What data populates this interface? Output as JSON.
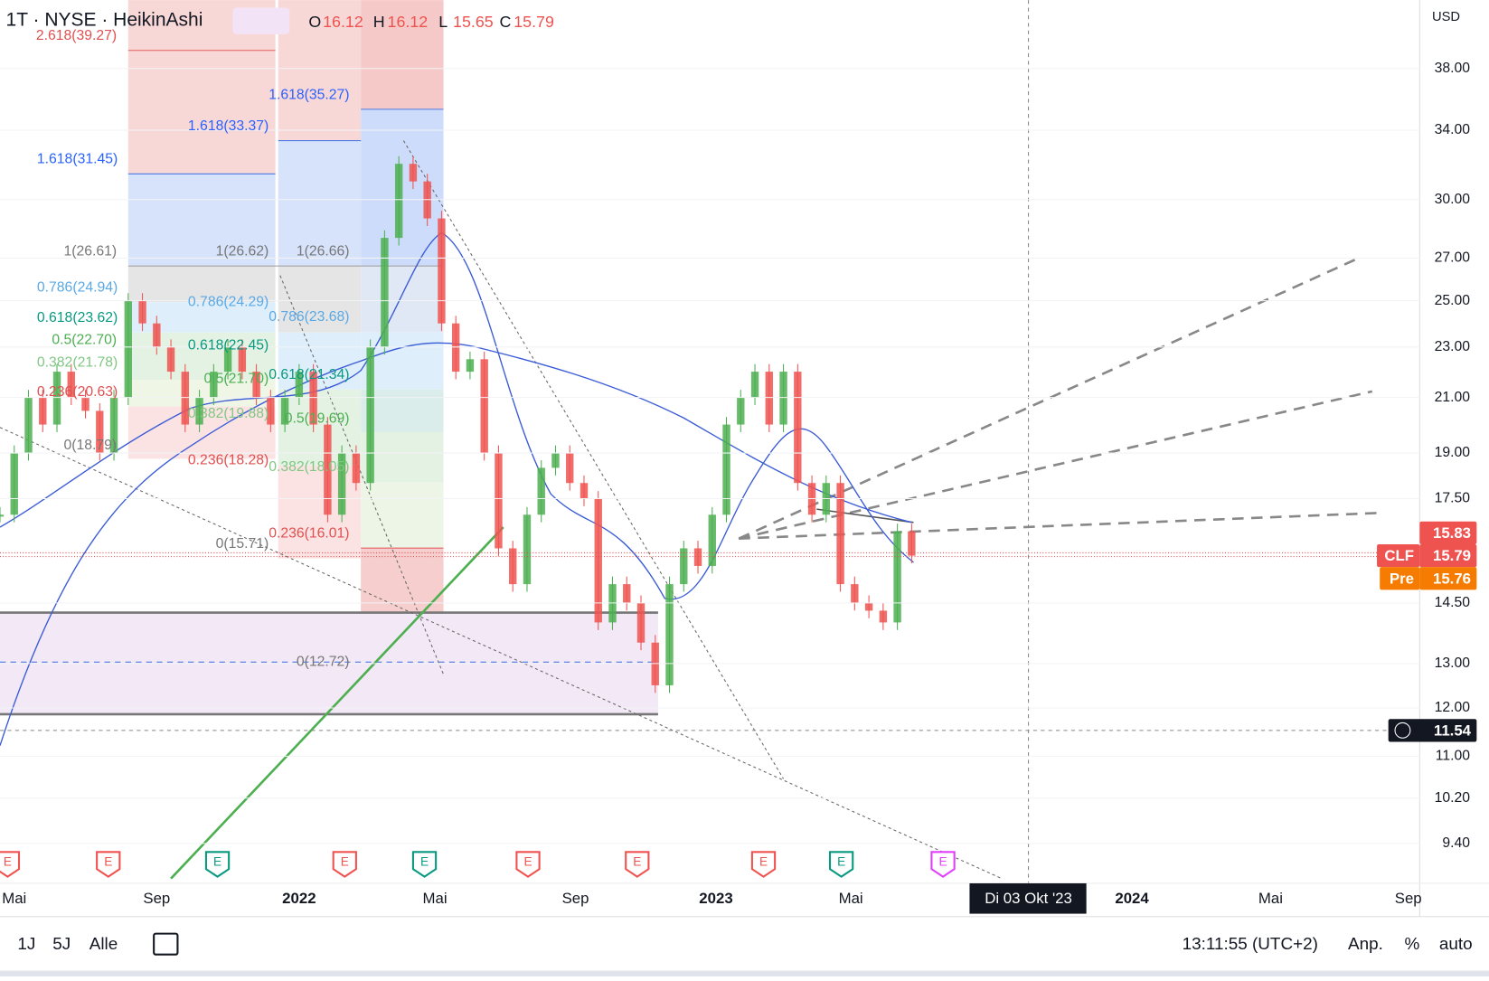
{
  "header": {
    "symbol": "· 1T · NYSE · HeikinAshi",
    "ohlc": [
      {
        "label": "O",
        "value": "16.12"
      },
      {
        "label": "H",
        "value": "16.12"
      },
      {
        "label": "L",
        "value": "15.65"
      },
      {
        "label": "C",
        "value": "15.79"
      }
    ],
    "currency": "USD"
  },
  "price_axis": {
    "ticks": [
      38.0,
      34.0,
      30.0,
      27.0,
      25.0,
      23.0,
      21.0,
      19.0,
      17.5,
      14.5,
      13.0,
      12.0,
      11.0,
      10.2,
      9.4
    ],
    "tick_labels": [
      "38.00",
      "34.00",
      "30.00",
      "27.00",
      "25.00",
      "23.00",
      "21.00",
      "19.00",
      "17.50",
      "14.50",
      "13.00",
      "12.00",
      "11.00",
      "10.20",
      "9.40"
    ]
  },
  "price_tags": {
    "high": "15.83",
    "symbol": "CLF",
    "last": "15.79",
    "pre_label": "Pre",
    "pre": "15.76",
    "cursor": "11.54"
  },
  "time_axis": [
    "Mai",
    "Sep",
    "2022",
    "Mai",
    "Sep",
    "2023",
    "Mai",
    "Di 03 Okt '23",
    "2024",
    "Mai",
    "Sep"
  ],
  "fib_labels": [
    "2.618(39.27)",
    "1.618(35.27)",
    "1.618(33.37)",
    "1.618(31.45)",
    "1(26.61)",
    "1(26.62)",
    "1(26.66)",
    "0.786(24.94)",
    "0.786(24.29)",
    "0.786(23.68)",
    "0.618(23.62)",
    "0.5(22.70)",
    "0.618(22.45)",
    "0.382(21.78)",
    "0.618(21.34)",
    "0.5(21.70)",
    "0.236(20.63)",
    "0.382(19.88)",
    "0.5(19.69)",
    "0(18.79)",
    "0.236(18.28)",
    "0.382(18.05)",
    "0.236(16.01)",
    "0(15.71)",
    "0(12.72)"
  ],
  "earnings_markers": [
    "E",
    "E",
    "E",
    "E",
    "E",
    "E",
    "E",
    "E",
    "E",
    "E"
  ],
  "closes": [
    17,
    19,
    21,
    20,
    22,
    21,
    20.5,
    19,
    21,
    25,
    24,
    23,
    22,
    20,
    21,
    22,
    23,
    22,
    21,
    20,
    21,
    22,
    20,
    17,
    19,
    18,
    23,
    28,
    32,
    31,
    29,
    24,
    22,
    22.5,
    19,
    16,
    15,
    17,
    18.5,
    19,
    18,
    17.5,
    14,
    15,
    14.5,
    13.5,
    12.5,
    15,
    16,
    15.5,
    17,
    20,
    21,
    22,
    20,
    22,
    18,
    17,
    18,
    15,
    14.5,
    14.3,
    14,
    16.5,
    15.79
  ],
  "bottom_bar": {
    "ranges": [
      "1J",
      "5J",
      "Alle"
    ],
    "clock": "13:11:55 (UTC+2)",
    "options": [
      "Anp.",
      "%",
      "auto"
    ]
  }
}
